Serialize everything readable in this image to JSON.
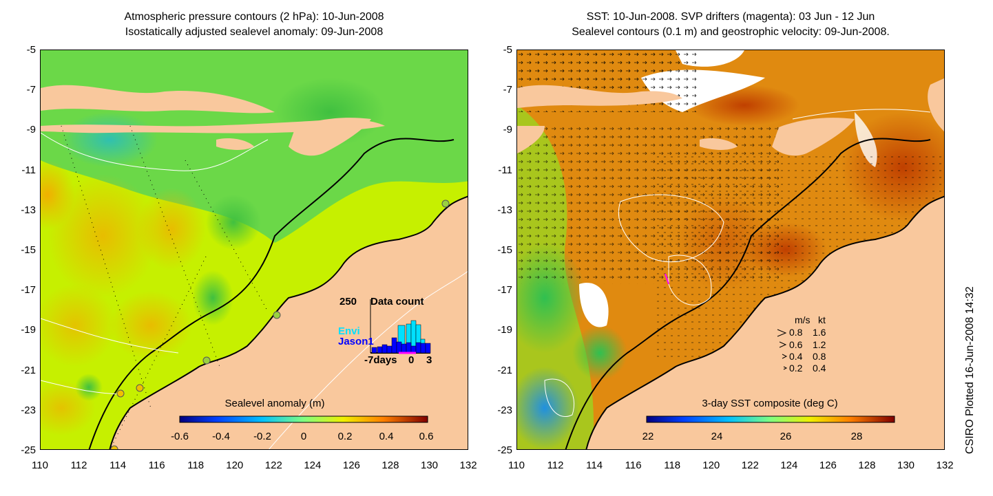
{
  "left_panel": {
    "title_line1": "Atmospheric pressure contours (2 hPa): 10-Jun-2008",
    "title_line2": "Isostatically adjusted sealevel anomaly: 09-Jun-2008",
    "colorbar": {
      "title": "Sealevel anomaly (m)",
      "ticks": [
        "-0.6",
        "-0.4",
        "-0.2",
        "0",
        "0.2",
        "0.4",
        "0.6"
      ]
    },
    "data_count_inset": {
      "max_label": "250",
      "title": "Data count",
      "series": [
        "Envi",
        "Jason1"
      ],
      "xticks": [
        "-7days",
        "0",
        "3"
      ]
    }
  },
  "right_panel": {
    "title_line1": "SST: 10-Jun-2008. SVP drifters (magenta): 03 Jun - 12 Jun",
    "title_line2": "Sealevel contours (0.1 m) and geostrophic velocity: 09-Jun-2008.",
    "colorbar": {
      "title": "3-day SST composite (deg C)",
      "ticks": [
        "22",
        "24",
        "26",
        "28"
      ]
    },
    "velocity_legend": {
      "header_ms": "m/s",
      "header_kt": "kt",
      "rows": [
        {
          "ms": "0.8",
          "kt": "1.6"
        },
        {
          "ms": "0.6",
          "kt": "1.2"
        },
        {
          "ms": "0.4",
          "kt": "0.8"
        },
        {
          "ms": "0.2",
          "kt": "0.4"
        }
      ]
    }
  },
  "axes": {
    "y_ticks": [
      "-5",
      "-7",
      "-9",
      "-11",
      "-13",
      "-15",
      "-17",
      "-19",
      "-21",
      "-23",
      "-25"
    ],
    "x_ticks": [
      "110",
      "112",
      "114",
      "116",
      "118",
      "120",
      "122",
      "124",
      "126",
      "128",
      "130",
      "132"
    ]
  },
  "credit": "CSIRO Plotted 16-Jun-2008 14:32",
  "colors": {
    "land": "#f9c89d",
    "sla_background": "#c6f000",
    "sst_background": "#e08a10",
    "drifter": "#ff00ff",
    "jason_bar": "#0000ff",
    "envi_bar": "#00e0ff"
  }
}
